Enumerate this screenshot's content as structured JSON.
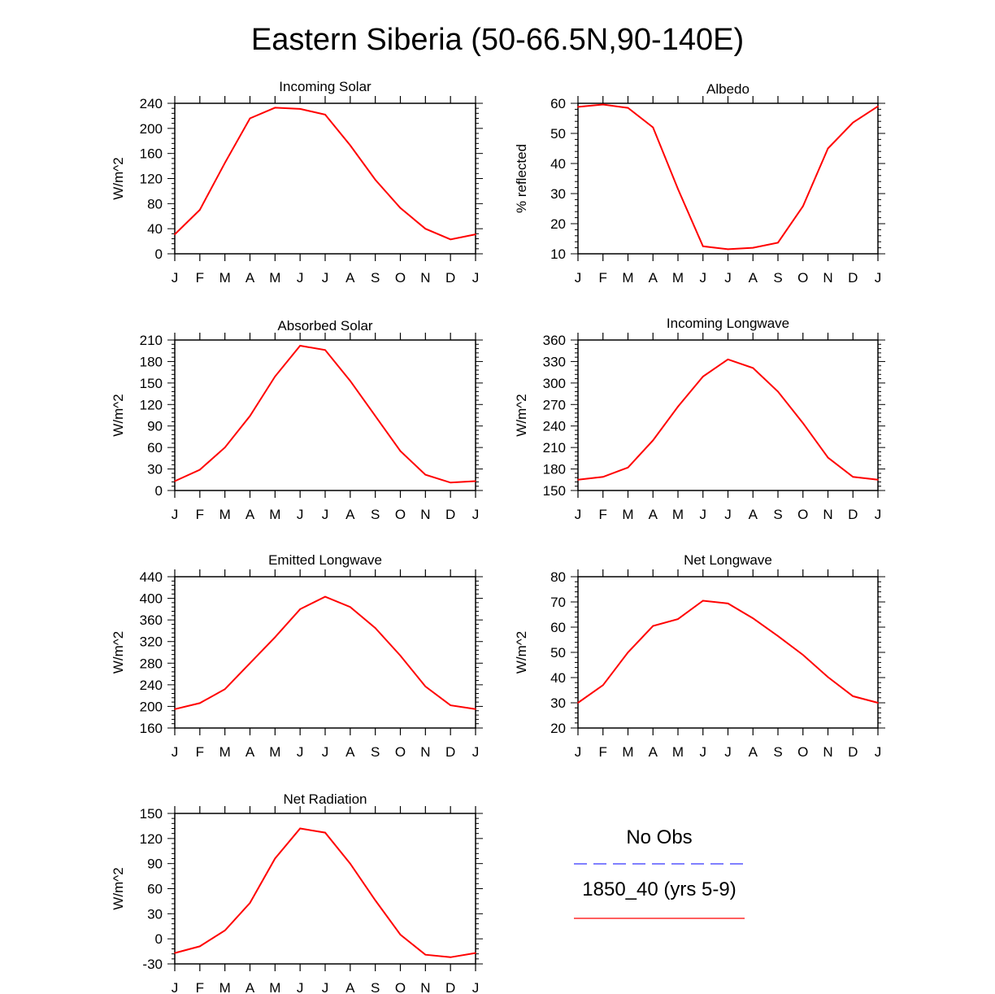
{
  "title": "Eastern Siberia (50-66.5N,90-140E)",
  "colors": {
    "model": "#ff0000",
    "obs": "#0000ff",
    "axis": "#000000"
  },
  "legend": {
    "obs_label": "No Obs",
    "model_label": "1850_40 (yrs 5-9)"
  },
  "chart_data": [
    {
      "type": "line",
      "title": "Incoming Solar",
      "xlabel": "",
      "ylabel": "W/m^2",
      "categories": [
        "J",
        "F",
        "M",
        "A",
        "M",
        "J",
        "J",
        "A",
        "S",
        "O",
        "N",
        "D",
        "J"
      ],
      "ylim": [
        0,
        240
      ],
      "yticks": [
        0,
        40,
        80,
        120,
        160,
        200,
        240
      ],
      "series": [
        {
          "name": "1850_40 (yrs 5-9)",
          "values": [
            31,
            70,
            145,
            216,
            233,
            231,
            222,
            173,
            118,
            73,
            40,
            23,
            31
          ]
        }
      ]
    },
    {
      "type": "line",
      "title": "Albedo",
      "xlabel": "",
      "ylabel": "% reflected",
      "categories": [
        "J",
        "F",
        "M",
        "A",
        "M",
        "J",
        "J",
        "A",
        "S",
        "O",
        "N",
        "D",
        "J"
      ],
      "ylim": [
        10,
        60
      ],
      "yticks": [
        10,
        20,
        30,
        40,
        50,
        60
      ],
      "series": [
        {
          "name": "1850_40 (yrs 5-9)",
          "values": [
            58.8,
            59.6,
            58.5,
            52,
            31.5,
            12.5,
            11.5,
            12,
            13.7,
            25.8,
            45,
            53.6,
            59
          ]
        }
      ]
    },
    {
      "type": "line",
      "title": "Absorbed Solar",
      "xlabel": "",
      "ylabel": "W/m^2",
      "categories": [
        "J",
        "F",
        "M",
        "A",
        "M",
        "J",
        "J",
        "A",
        "S",
        "O",
        "N",
        "D",
        "J"
      ],
      "ylim": [
        0,
        210
      ],
      "yticks": [
        0,
        30,
        60,
        90,
        120,
        150,
        180,
        210
      ],
      "series": [
        {
          "name": "1850_40 (yrs 5-9)",
          "values": [
            13,
            29,
            60,
            104,
            159,
            202,
            196,
            153,
            104,
            55,
            22,
            11,
            13
          ]
        }
      ]
    },
    {
      "type": "line",
      "title": "Incoming Longwave",
      "xlabel": "",
      "ylabel": "W/m^2",
      "categories": [
        "J",
        "F",
        "M",
        "A",
        "M",
        "J",
        "J",
        "A",
        "S",
        "O",
        "N",
        "D",
        "J"
      ],
      "ylim": [
        150,
        360
      ],
      "yticks": [
        150,
        180,
        210,
        240,
        270,
        300,
        330,
        360
      ],
      "series": [
        {
          "name": "1850_40 (yrs 5-9)",
          "values": [
            165,
            169,
            182,
            220,
            267,
            309,
            333,
            321,
            288,
            244,
            196,
            169,
            165
          ]
        }
      ]
    },
    {
      "type": "line",
      "title": "Emitted Longwave",
      "xlabel": "",
      "ylabel": "W/m^2",
      "categories": [
        "J",
        "F",
        "M",
        "A",
        "M",
        "J",
        "J",
        "A",
        "S",
        "O",
        "N",
        "D",
        "J"
      ],
      "ylim": [
        160,
        440
      ],
      "yticks": [
        160,
        200,
        240,
        280,
        320,
        360,
        400,
        440
      ],
      "series": [
        {
          "name": "1850_40 (yrs 5-9)",
          "values": [
            195,
            206,
            232,
            280,
            328,
            380,
            403,
            384,
            345,
            294,
            237,
            202,
            195
          ]
        }
      ]
    },
    {
      "type": "line",
      "title": "Net Longwave",
      "xlabel": "",
      "ylabel": "W/m^2",
      "categories": [
        "J",
        "F",
        "M",
        "A",
        "M",
        "J",
        "J",
        "A",
        "S",
        "O",
        "N",
        "D",
        "J"
      ],
      "ylim": [
        20,
        80
      ],
      "yticks": [
        20,
        30,
        40,
        50,
        60,
        70,
        80
      ],
      "series": [
        {
          "name": "1850_40 (yrs 5-9)",
          "values": [
            30,
            37,
            50,
            60.5,
            63.2,
            70.5,
            69.4,
            63.5,
            56.5,
            49,
            40.2,
            32.6,
            30
          ]
        }
      ]
    },
    {
      "type": "line",
      "title": "Net Radiation",
      "xlabel": "",
      "ylabel": "W/m^2",
      "categories": [
        "J",
        "F",
        "M",
        "A",
        "M",
        "J",
        "J",
        "A",
        "S",
        "O",
        "N",
        "D",
        "J"
      ],
      "ylim": [
        -30,
        150
      ],
      "yticks": [
        -30,
        0,
        30,
        60,
        90,
        120,
        150
      ],
      "series": [
        {
          "name": "1850_40 (yrs 5-9)",
          "values": [
            -17,
            -9,
            10,
            43,
            96,
            132,
            127,
            90,
            46,
            5,
            -19,
            -22,
            -17
          ]
        }
      ]
    }
  ]
}
